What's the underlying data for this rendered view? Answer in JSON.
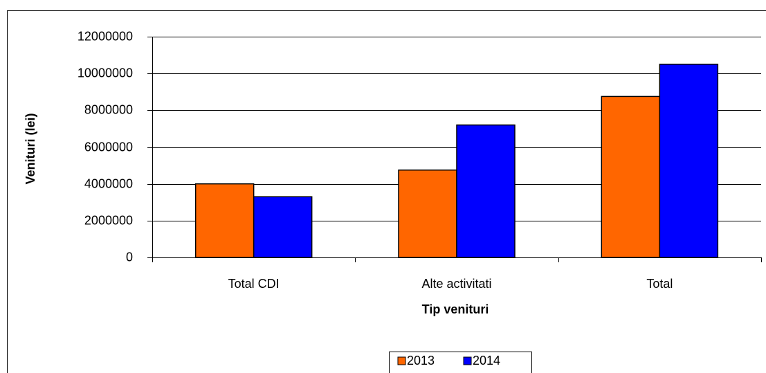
{
  "chart_data": {
    "type": "bar",
    "categories": [
      "Total CDI",
      "Alte activitati",
      "Total"
    ],
    "series": [
      {
        "name": "2013",
        "color": "#ff6600",
        "values": [
          4000000,
          4750000,
          8750000
        ]
      },
      {
        "name": "2014",
        "color": "#0000ff",
        "values": [
          3300000,
          7200000,
          10500000
        ]
      }
    ],
    "x_label": "Tip venituri",
    "y_label": "Venituri (lei)",
    "ylim": [
      0,
      12000000
    ],
    "yticks": [
      0,
      2000000,
      4000000,
      6000000,
      8000000,
      10000000,
      12000000
    ],
    "grid": true,
    "legend": "bottom"
  }
}
